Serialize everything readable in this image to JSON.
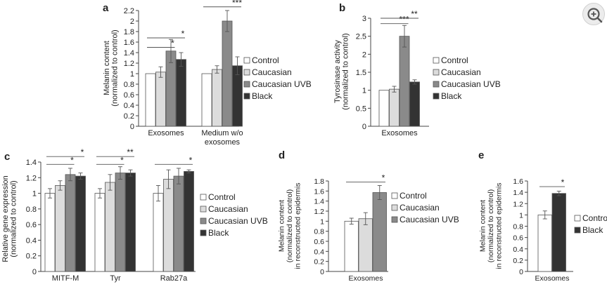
{
  "colors": {
    "Control": "#ffffff",
    "Caucasian": "#dcdcdc",
    "Caucasian UVB": "#8a8a8a",
    "Black": "#333333",
    "axis": "#444444"
  },
  "chart_data": [
    {
      "id": "a",
      "panel_label": "a",
      "type": "bar",
      "ylabel": [
        "Melanin content",
        "(normalized to control)"
      ],
      "ylim": [
        0,
        2.2
      ],
      "yticks": [
        0,
        0.2,
        0.4,
        0.6,
        0.8,
        1,
        1.2,
        1.4,
        1.6,
        1.8,
        2,
        2.2
      ],
      "categories": [
        [
          "Exosomes"
        ],
        [
          "Medium w/o",
          "exosomes"
        ]
      ],
      "series": [
        {
          "name": "Control",
          "values": [
            1.0,
            1.0
          ],
          "errors": [
            0,
            0
          ]
        },
        {
          "name": "Caucasian",
          "values": [
            1.03,
            1.08
          ],
          "errors": [
            0.1,
            0.07
          ]
        },
        {
          "name": "Caucasian UVB",
          "values": [
            1.43,
            2.0
          ],
          "errors": [
            0.22,
            0.2
          ]
        },
        {
          "name": "Black",
          "values": [
            1.27,
            1.15
          ],
          "errors": [
            0.13,
            0.17
          ]
        }
      ],
      "legend": [
        "Control",
        "Caucasian",
        "Caucasian UVB",
        "Black"
      ],
      "significance": [
        {
          "group": 0,
          "from": 0,
          "to": 2,
          "level": 1.5,
          "label": "*"
        },
        {
          "group": 0,
          "from": 0,
          "to": 3,
          "level": 1.68,
          "label": "*"
        },
        {
          "group": 1,
          "from": 0,
          "to": 3,
          "level": 2.27,
          "label": "***"
        }
      ]
    },
    {
      "id": "b",
      "panel_label": "b",
      "type": "bar",
      "ylabel": [
        "Tyrosinase activity",
        "(normalized to control)"
      ],
      "ylim": [
        0,
        3
      ],
      "yticks": [
        0,
        0.5,
        1,
        1.5,
        2,
        2.5,
        3
      ],
      "categories": [
        [
          "Exosomes"
        ]
      ],
      "series": [
        {
          "name": "Control",
          "values": [
            1.0
          ],
          "errors": [
            0
          ]
        },
        {
          "name": "Caucasian",
          "values": [
            1.03
          ],
          "errors": [
            0.08
          ]
        },
        {
          "name": "Caucasian UVB",
          "values": [
            2.5
          ],
          "errors": [
            0.3
          ]
        },
        {
          "name": "Black",
          "values": [
            1.23
          ],
          "errors": [
            0.06
          ]
        }
      ],
      "legend": [
        "Control",
        "Caucasian",
        "Caucasian UVB",
        "Black"
      ],
      "significance": [
        {
          "group": 0,
          "from": 0,
          "to": 2,
          "level": 2.85,
          "label": "***"
        },
        {
          "group": 0,
          "from": 0,
          "to": 3,
          "level": 3.0,
          "label": "**"
        }
      ]
    },
    {
      "id": "c",
      "panel_label": "c",
      "type": "bar",
      "ylabel": [
        "Relative gene expression",
        "(normalized to control)"
      ],
      "ylim": [
        0,
        1.4
      ],
      "yticks": [
        0,
        0.2,
        0.4,
        0.6,
        0.8,
        1,
        1.2,
        1.4
      ],
      "categories": [
        [
          "MITF-M"
        ],
        [
          "Tyr"
        ],
        [
          "Rab27a"
        ]
      ],
      "series": [
        {
          "name": "Control",
          "values": [
            1.0,
            1.0,
            1.0
          ],
          "errors": [
            0.06,
            0.06,
            0.1
          ]
        },
        {
          "name": "Caucasian",
          "values": [
            1.1,
            1.14,
            1.18
          ],
          "errors": [
            0.06,
            0.1,
            0.12
          ]
        },
        {
          "name": "Caucasian UVB",
          "values": [
            1.24,
            1.26,
            1.22
          ],
          "errors": [
            0.08,
            0.08,
            0.1
          ]
        },
        {
          "name": "Black",
          "values": [
            1.22,
            1.26,
            1.28
          ],
          "errors": [
            0.04,
            0.04,
            0.02
          ]
        }
      ],
      "legend": [
        "Control",
        "Caucasian",
        "Caucasian UVB",
        "Black"
      ],
      "significance": [
        {
          "group": 0,
          "from": 0,
          "to": 2,
          "level": 1.37,
          "label": "*"
        },
        {
          "group": 0,
          "from": 0,
          "to": 3,
          "level": 1.47,
          "label": "*"
        },
        {
          "group": 1,
          "from": 0,
          "to": 2,
          "level": 1.37,
          "label": "*"
        },
        {
          "group": 1,
          "from": 0,
          "to": 3,
          "level": 1.47,
          "label": "**"
        },
        {
          "group": 2,
          "from": 0,
          "to": 3,
          "level": 1.37,
          "label": "*"
        }
      ]
    },
    {
      "id": "d",
      "panel_label": "d",
      "type": "bar",
      "ylabel": [
        "Melanin content",
        "(normalized to control)",
        "in reconstructed epidermis"
      ],
      "ylim": [
        0,
        1.8
      ],
      "yticks": [
        0,
        0.2,
        0.4,
        0.6,
        0.8,
        1,
        1.2,
        1.4,
        1.6,
        1.8
      ],
      "categories": [
        [
          "Exosomes"
        ]
      ],
      "series": [
        {
          "name": "Control",
          "values": [
            1.0
          ],
          "errors": [
            0.06
          ]
        },
        {
          "name": "Caucasian",
          "values": [
            1.05
          ],
          "errors": [
            0.12
          ]
        },
        {
          "name": "Caucasian UVB",
          "values": [
            1.57
          ],
          "errors": [
            0.14
          ]
        }
      ],
      "legend": [
        "Control",
        "Caucasian",
        "Caucasian UVB"
      ],
      "significance": [
        {
          "group": 0,
          "from": 0,
          "to": 2,
          "level": 1.78,
          "label": "*"
        }
      ]
    },
    {
      "id": "e",
      "panel_label": "e",
      "type": "bar",
      "ylabel": [
        "Melanin content",
        "(normalized to control)",
        "in reconstructed epidermis"
      ],
      "ylim": [
        0,
        1.6
      ],
      "yticks": [
        0,
        0.2,
        0.4,
        0.6,
        0.8,
        1,
        1.2,
        1.4,
        1.6
      ],
      "categories": [
        [
          "Exosomes"
        ]
      ],
      "series": [
        {
          "name": "Control",
          "values": [
            1.0
          ],
          "errors": [
            0.07
          ]
        },
        {
          "name": "Black",
          "values": [
            1.38
          ],
          "errors": [
            0.04
          ]
        }
      ],
      "legend": [
        "Control",
        "Black"
      ],
      "significance": [
        {
          "group": 0,
          "from": 0,
          "to": 1,
          "level": 1.5,
          "label": "*"
        }
      ]
    }
  ]
}
